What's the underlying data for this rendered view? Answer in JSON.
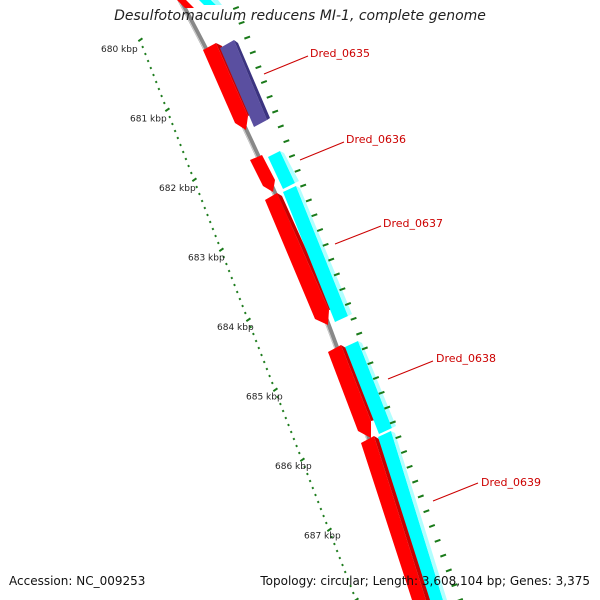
{
  "title": "Desulfotomaculum reducens MI-1, complete genome",
  "footer": {
    "accession": "Accession: NC_009253",
    "summary": "Topology: circular; Length: 3,608,104 bp; Genes: 3,375"
  },
  "ticks": [
    {
      "label": "680 kbp",
      "kbp": 680
    },
    {
      "label": "681 kbp",
      "kbp": 681
    },
    {
      "label": "682 kbp",
      "kbp": 682
    },
    {
      "label": "683 kbp",
      "kbp": 683
    },
    {
      "label": "684 kbp",
      "kbp": 684
    },
    {
      "label": "685 kbp",
      "kbp": 685
    },
    {
      "label": "686 kbp",
      "kbp": 686
    },
    {
      "label": "687 kbp",
      "kbp": 687
    }
  ],
  "genes": [
    {
      "label": "Dred_0635",
      "color": "#ff0000",
      "strand": "+"
    },
    {
      "label": "Dred_0636",
      "color": "#ff0000",
      "strand": "+"
    },
    {
      "label": "Dred_0637",
      "color": "#ff0000",
      "strand": "+"
    },
    {
      "label": "Dred_0638",
      "color": "#ff0000",
      "strand": "+"
    },
    {
      "label": "Dred_0639",
      "color": "#ff0000",
      "strand": "+"
    }
  ],
  "colors": {
    "cds": "#ff0000",
    "cds_shade": "#c80000",
    "cyan_feature": "#00ffff",
    "purple_feature": "#5a4fa0",
    "backbone": "#888888",
    "tick": "#1a7a1a",
    "label": "#cc0000"
  }
}
